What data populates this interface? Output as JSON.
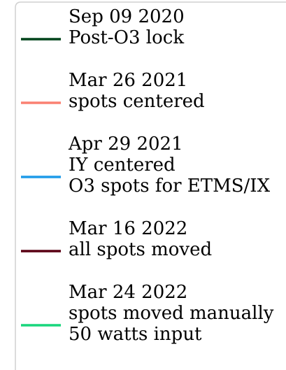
{
  "legend": {
    "entries": [
      {
        "lines": [
          "Sep 09 2020",
          "Post-O3 lock"
        ],
        "color": "#00441b"
      },
      {
        "lines": [
          "Mar 26 2021",
          "spots centered"
        ],
        "color": "#fa8072"
      },
      {
        "lines": [
          "Apr 29 2021",
          "IY centered",
          "O3 spots for ETMS/IX"
        ],
        "color": "#1e9be9"
      },
      {
        "lines": [
          "Mar 16 2022",
          "all spots moved"
        ],
        "color": "#5a0013"
      },
      {
        "lines": [
          "Mar 24 2022",
          "spots moved manually",
          "50 watts input"
        ],
        "color": "#18d67c"
      }
    ]
  }
}
